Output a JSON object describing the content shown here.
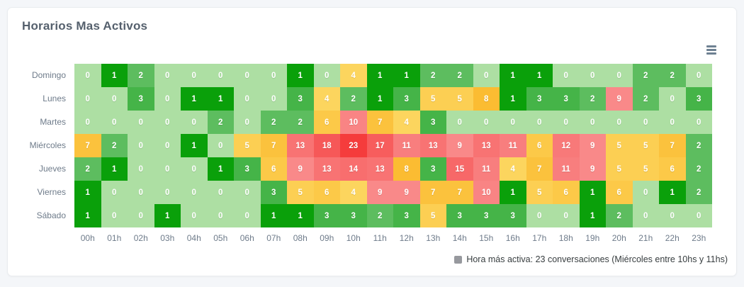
{
  "chart_data": {
    "type": "heatmap",
    "title": "Horarios Mas Activos",
    "xlabel": "",
    "ylabel": "",
    "x_categories": [
      "00h",
      "01h",
      "02h",
      "03h",
      "04h",
      "05h",
      "06h",
      "07h",
      "08h",
      "09h",
      "10h",
      "11h",
      "12h",
      "13h",
      "14h",
      "15h",
      "16h",
      "17h",
      "18h",
      "19h",
      "20h",
      "21h",
      "22h",
      "23h"
    ],
    "y_categories": [
      "Domingo",
      "Lunes",
      "Martes",
      "Miércoles",
      "Jueves",
      "Viernes",
      "Sábado"
    ],
    "series": [
      {
        "name": "Domingo",
        "values": [
          0,
          1,
          2,
          0,
          0,
          0,
          0,
          0,
          1,
          0,
          4,
          1,
          1,
          2,
          2,
          0,
          1,
          1,
          0,
          0,
          0,
          2,
          2,
          0
        ]
      },
      {
        "name": "Lunes",
        "values": [
          0,
          0,
          3,
          0,
          1,
          1,
          0,
          0,
          3,
          4,
          2,
          1,
          3,
          5,
          5,
          8,
          1,
          3,
          3,
          2,
          9,
          2,
          0,
          3
        ]
      },
      {
        "name": "Martes",
        "values": [
          0,
          0,
          0,
          0,
          0,
          2,
          0,
          2,
          2,
          6,
          10,
          7,
          4,
          3,
          0,
          0,
          0,
          0,
          0,
          0,
          0,
          0,
          0,
          0
        ]
      },
      {
        "name": "Miércoles",
        "values": [
          7,
          2,
          0,
          0,
          1,
          0,
          5,
          7,
          13,
          18,
          23,
          17,
          11,
          13,
          9,
          13,
          11,
          6,
          12,
          9,
          5,
          5,
          7,
          2
        ]
      },
      {
        "name": "Jueves",
        "values": [
          2,
          1,
          0,
          0,
          0,
          1,
          3,
          6,
          9,
          13,
          14,
          13,
          8,
          3,
          15,
          11,
          4,
          7,
          11,
          9,
          5,
          5,
          6,
          2
        ]
      },
      {
        "name": "Viernes",
        "values": [
          1,
          0,
          0,
          0,
          0,
          0,
          0,
          3,
          5,
          6,
          4,
          9,
          9,
          7,
          7,
          10,
          1,
          5,
          6,
          1,
          6,
          0,
          1,
          2
        ]
      },
      {
        "name": "Sábado",
        "values": [
          1,
          0,
          0,
          1,
          0,
          0,
          0,
          1,
          1,
          3,
          3,
          2,
          3,
          5,
          3,
          3,
          3,
          0,
          0,
          1,
          2,
          0,
          0,
          0
        ]
      }
    ],
    "max_value": 23,
    "grid": false,
    "legend_position": "bottom-right",
    "legend_text": "Hora más activa: 23 conversaciones (Miércoles entre 10hs y 11hs)",
    "legend_marker_color": "#97999e",
    "color_scale": [
      {
        "value": 0,
        "color": "#addfa3"
      },
      {
        "value": 1,
        "color": "#0aa00a"
      },
      {
        "value": 2,
        "color": "#5dbd5f"
      },
      {
        "value": 3,
        "color": "#45b448"
      },
      {
        "from": 4,
        "to": 8,
        "color_from": "#fcd55e",
        "color_to": "#fbbc32"
      },
      {
        "from": 9,
        "to": 23,
        "color_from": "#f98989",
        "color_to": "#f53c3c"
      }
    ],
    "colors": {
      "title_text": "#55606d",
      "axis_text": "#6e7b8a",
      "cell_text": "#ffffff",
      "menu_icon": "#6e8192",
      "card_background": "#ffffff",
      "page_background": "#f4f6f9"
    }
  }
}
